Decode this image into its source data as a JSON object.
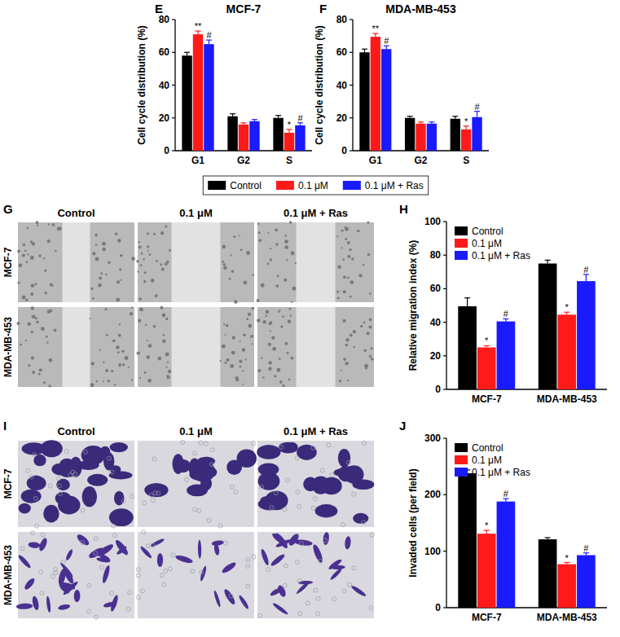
{
  "chart_data": [
    {
      "type": "bar",
      "title": "MCF-7",
      "y_label": "Cell cycle distribution (%)",
      "categories": [
        "G1",
        "G2",
        "S"
      ],
      "ylim": [
        0,
        80
      ],
      "yticks": [
        0,
        20,
        40,
        60,
        80
      ],
      "legend": "bottom",
      "series": [
        {
          "name": "Control",
          "color": "#000000",
          "values": [
            58,
            21,
            20
          ],
          "errors": [
            2,
            1.5,
            1.5
          ],
          "annotations": [
            null,
            null,
            null
          ]
        },
        {
          "name": "0.1 μM",
          "color": "#ff1a1a",
          "values": [
            71,
            16,
            11
          ],
          "errors": [
            2,
            1,
            2
          ],
          "annotations": [
            "**",
            null,
            "*"
          ]
        },
        {
          "name": "0.1 μM + Ras",
          "color": "#1a1aff",
          "values": [
            65,
            18,
            15.5
          ],
          "errors": [
            2.5,
            1,
            1.5
          ],
          "annotations": [
            "#",
            null,
            "#"
          ]
        }
      ]
    },
    {
      "type": "bar",
      "title": "MDA-MB-453",
      "y_label": "Cell cycle distribution (%)",
      "categories": [
        "G1",
        "G2",
        "S"
      ],
      "ylim": [
        0,
        80
      ],
      "yticks": [
        0,
        20,
        40,
        60,
        80
      ],
      "legend": "bottom",
      "series": [
        {
          "name": "Control",
          "color": "#000000",
          "values": [
            60,
            20,
            19.5
          ],
          "errors": [
            2,
            1,
            1.5
          ],
          "annotations": [
            null,
            null,
            null
          ]
        },
        {
          "name": "0.1 μM",
          "color": "#ff1a1a",
          "values": [
            69.5,
            16.5,
            13
          ],
          "errors": [
            2,
            1,
            2
          ],
          "annotations": [
            "**",
            null,
            "*"
          ]
        },
        {
          "name": "0.1 μM + Ras",
          "color": "#1a1aff",
          "values": [
            62,
            16.5,
            20.5
          ],
          "errors": [
            2,
            1,
            3.5
          ],
          "annotations": [
            "#",
            null,
            "#"
          ]
        }
      ]
    },
    {
      "type": "bar",
      "y_label": "Relative migration index (%)",
      "categories": [
        "MCF-7",
        "MDA-MB-453"
      ],
      "ylim": [
        0,
        100
      ],
      "yticks": [
        0,
        20,
        40,
        60,
        80,
        100
      ],
      "legend": "upper left",
      "series": [
        {
          "name": "Control",
          "color": "#000000",
          "values": [
            49.5,
            75
          ],
          "errors": [
            5,
            2
          ],
          "annotations": [
            null,
            null
          ]
        },
        {
          "name": "0.1 μM",
          "color": "#ff1a1a",
          "values": [
            25,
            44.5
          ],
          "errors": [
            1,
            1.5
          ],
          "annotations": [
            "*",
            "*"
          ]
        },
        {
          "name": "0.1 μM + Ras",
          "color": "#1a1aff",
          "values": [
            40.5,
            64.5
          ],
          "errors": [
            1.5,
            4
          ],
          "annotations": [
            "#",
            "#"
          ]
        }
      ]
    },
    {
      "type": "bar",
      "y_label": "Invaded cells (per field)",
      "categories": [
        "MCF-7",
        "MDA-MB-453"
      ],
      "ylim": [
        0,
        300
      ],
      "yticks": [
        0,
        100,
        200,
        300
      ],
      "legend": "upper left",
      "series": [
        {
          "name": "Control",
          "color": "#000000",
          "values": [
            238,
            121
          ],
          "errors": [
            6,
            3
          ],
          "annotations": [
            null,
            null
          ]
        },
        {
          "name": "0.1 μM",
          "color": "#ff1a1a",
          "values": [
            131,
            77
          ],
          "errors": [
            6,
            3
          ],
          "annotations": [
            "*",
            "*"
          ]
        },
        {
          "name": "0.1 μM + Ras",
          "color": "#1a1aff",
          "values": [
            188,
            93
          ],
          "errors": [
            5,
            4
          ],
          "annotations": [
            "#",
            "#"
          ]
        }
      ]
    }
  ],
  "image_panels": [
    {
      "columns": [
        "Control",
        "0.1 μM",
        "0.1 μM + Ras"
      ],
      "rows": [
        "MCF-7",
        "MDA-MB-453"
      ]
    },
    {
      "columns": [
        "Control",
        "0.1 μM",
        "0.1 μM + Ras"
      ],
      "rows": [
        "MCF-7",
        "MDA-MB-453"
      ]
    }
  ],
  "panel_labels": [
    "E",
    "F",
    "G",
    "H",
    "I",
    "J"
  ]
}
